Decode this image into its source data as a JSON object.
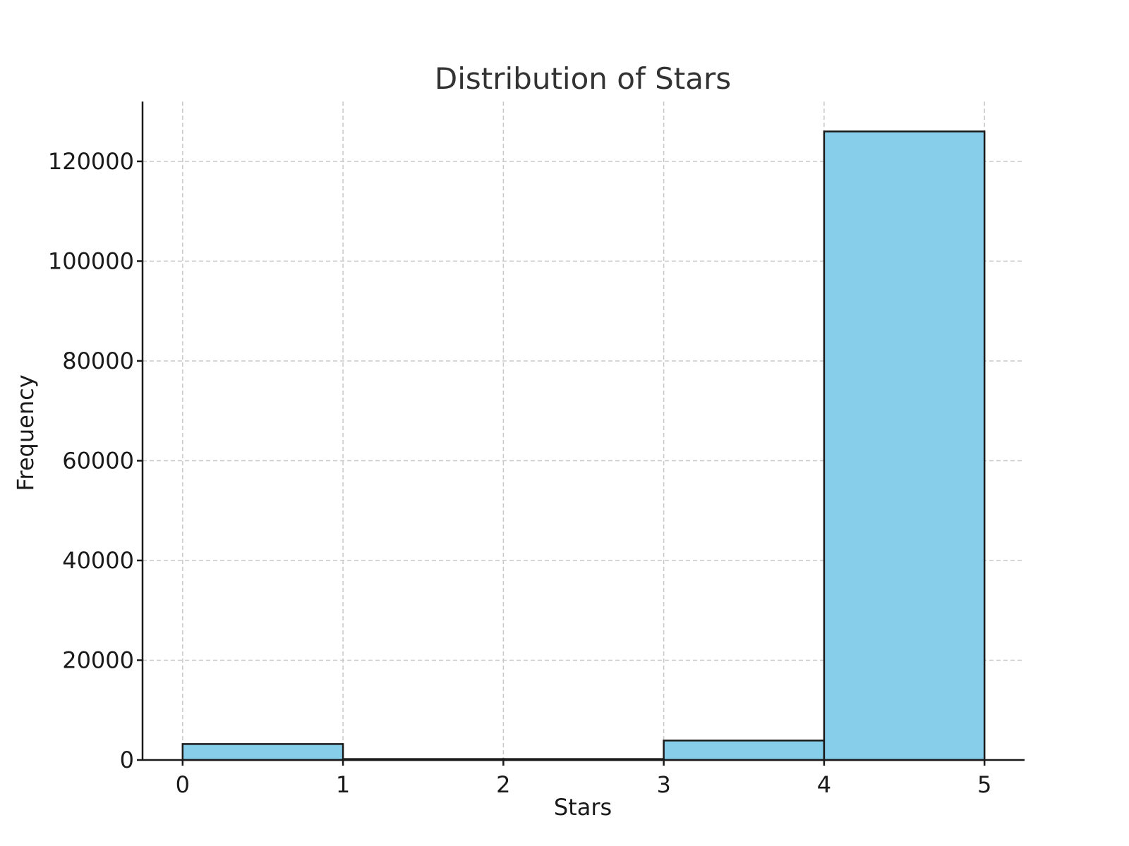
{
  "chart_data": {
    "type": "bar",
    "title": "Distribution of Stars",
    "xlabel": "Stars",
    "ylabel": "Frequency",
    "bin_edges": [
      0,
      1,
      2,
      3,
      4,
      5
    ],
    "values": [
      3200,
      200,
      200,
      3900,
      126000
    ],
    "xlim": [
      -0.25,
      5.25
    ],
    "ylim": [
      0,
      132000
    ],
    "x_ticks": [
      0,
      1,
      2,
      3,
      4,
      5
    ],
    "y_ticks": [
      0,
      20000,
      40000,
      60000,
      80000,
      100000,
      120000
    ],
    "grid": true,
    "bar_color": "#87CEEB",
    "edge_color": "#1a1a1a"
  }
}
